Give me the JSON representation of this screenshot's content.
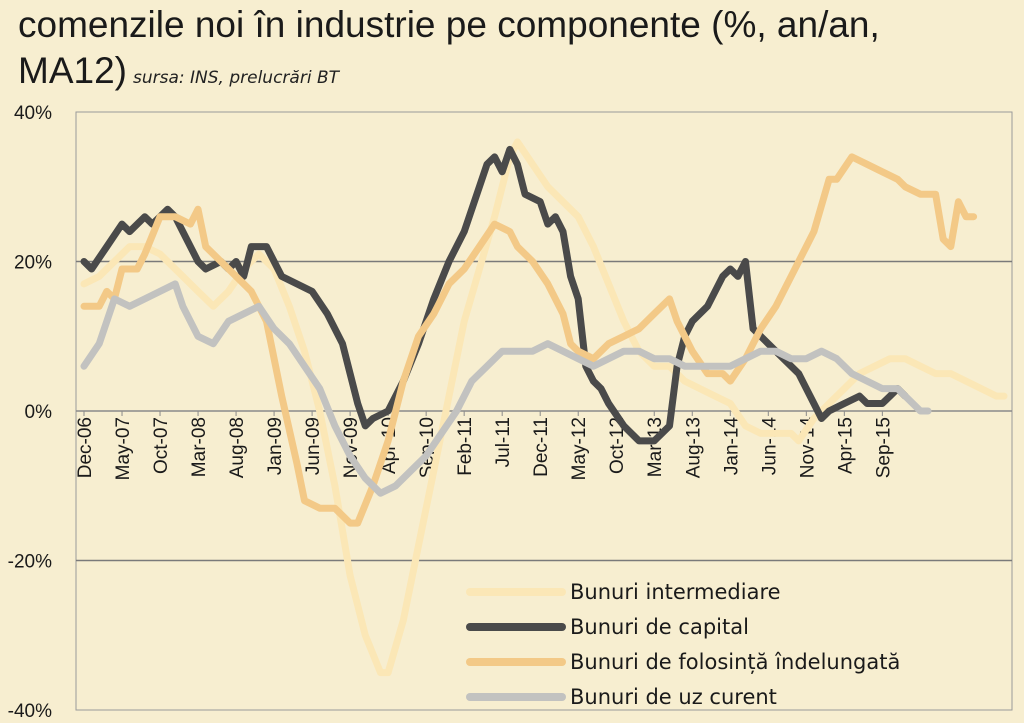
{
  "chart_data": {
    "type": "line",
    "title_main": "comenzile noi în industrie pe componente (%, an/an, MA12)",
    "title_source": "sursa: INS, prelucrări BT",
    "ylim": [
      -40,
      40
    ],
    "y_ticks": [
      "40%",
      "20%",
      "0%",
      "-20%",
      "-40%"
    ],
    "y_tick_values": [
      40,
      20,
      0,
      -20,
      -40
    ],
    "x_tick_labels": [
      "Dec-06",
      "May-07",
      "Oct-07",
      "Mar-08",
      "Aug-08",
      "Jan-09",
      "Jun-09",
      "Nov-09",
      "Apr-10",
      "Sep-10",
      "Feb-11",
      "Jul-11",
      "Dec-11",
      "May-12",
      "Oct-12",
      "Mar-13",
      "Aug-13",
      "Jan-14",
      "Jun-14",
      "Nov-14",
      "Apr-15",
      "Sep-15"
    ],
    "grid": true,
    "legend_position": "bottom-right",
    "colors": {
      "intermediare": "#fbe7b6",
      "capital": "#4a4a4a",
      "folosinta": "#f3c987",
      "uz_curent": "#c2c2c0",
      "background": "#f7eed0",
      "gridline": "#7a7a7a"
    },
    "series": [
      {
        "name": "Bunuri intermediare",
        "key": "intermediare",
        "points": [
          [
            0,
            17
          ],
          [
            2,
            18
          ],
          [
            4,
            20
          ],
          [
            6,
            22
          ],
          [
            8,
            22
          ],
          [
            10,
            21
          ],
          [
            13,
            18
          ],
          [
            15,
            16
          ],
          [
            17,
            14
          ],
          [
            19,
            16
          ],
          [
            21,
            19
          ],
          [
            23,
            21
          ],
          [
            25,
            19
          ],
          [
            27,
            14
          ],
          [
            29,
            8
          ],
          [
            31,
            0
          ],
          [
            33,
            -10
          ],
          [
            35,
            -22
          ],
          [
            37,
            -30
          ],
          [
            39,
            -35
          ],
          [
            40,
            -35
          ],
          [
            42,
            -28
          ],
          [
            44,
            -18
          ],
          [
            46,
            -8
          ],
          [
            48,
            2
          ],
          [
            50,
            12
          ],
          [
            52,
            19
          ],
          [
            54,
            26
          ],
          [
            56,
            34
          ],
          [
            57,
            36
          ],
          [
            59,
            33
          ],
          [
            61,
            30
          ],
          [
            63,
            28
          ],
          [
            65,
            26
          ],
          [
            67,
            22
          ],
          [
            69,
            17
          ],
          [
            71,
            12
          ],
          [
            73,
            8
          ],
          [
            75,
            6
          ],
          [
            77,
            6
          ],
          [
            79,
            4
          ],
          [
            81,
            3
          ],
          [
            83,
            2
          ],
          [
            85,
            1
          ],
          [
            87,
            -2
          ],
          [
            89,
            -3
          ],
          [
            91,
            -3
          ],
          [
            93,
            -3
          ],
          [
            94,
            -4
          ],
          [
            96,
            -1
          ],
          [
            98,
            1
          ],
          [
            100,
            3
          ],
          [
            102,
            5
          ],
          [
            104,
            6
          ],
          [
            106,
            7
          ],
          [
            108,
            7
          ],
          [
            110,
            6
          ],
          [
            112,
            5
          ],
          [
            114,
            5
          ],
          [
            116,
            4
          ],
          [
            118,
            3
          ],
          [
            120,
            2
          ],
          [
            121,
            2
          ]
        ]
      },
      {
        "name": "Bunuri de capital",
        "key": "capital",
        "points": [
          [
            0,
            20
          ],
          [
            1,
            19
          ],
          [
            3,
            22
          ],
          [
            5,
            25
          ],
          [
            6,
            24
          ],
          [
            8,
            26
          ],
          [
            9,
            25
          ],
          [
            11,
            27
          ],
          [
            12,
            26
          ],
          [
            13,
            24
          ],
          [
            15,
            20
          ],
          [
            16,
            19
          ],
          [
            18,
            20
          ],
          [
            19,
            19
          ],
          [
            20,
            20
          ],
          [
            21,
            18
          ],
          [
            22,
            22
          ],
          [
            24,
            22
          ],
          [
            26,
            18
          ],
          [
            28,
            17
          ],
          [
            30,
            16
          ],
          [
            32,
            13
          ],
          [
            34,
            9
          ],
          [
            35,
            5
          ],
          [
            36,
            1
          ],
          [
            37,
            -2
          ],
          [
            38,
            -1
          ],
          [
            40,
            0
          ],
          [
            42,
            4
          ],
          [
            44,
            9
          ],
          [
            46,
            15
          ],
          [
            48,
            20
          ],
          [
            50,
            24
          ],
          [
            52,
            30
          ],
          [
            53,
            33
          ],
          [
            54,
            34
          ],
          [
            55,
            32
          ],
          [
            56,
            35
          ],
          [
            57,
            33
          ],
          [
            58,
            29
          ],
          [
            60,
            28
          ],
          [
            61,
            25
          ],
          [
            62,
            26
          ],
          [
            63,
            24
          ],
          [
            64,
            18
          ],
          [
            65,
            15
          ],
          [
            66,
            6
          ],
          [
            67,
            4
          ],
          [
            68,
            3
          ],
          [
            69,
            1
          ],
          [
            71,
            -2
          ],
          [
            73,
            -4
          ],
          [
            75,
            -4
          ],
          [
            76,
            -3
          ],
          [
            77,
            -2
          ],
          [
            78,
            6
          ],
          [
            79,
            10
          ],
          [
            80,
            12
          ],
          [
            82,
            14
          ],
          [
            84,
            18
          ],
          [
            85,
            19
          ],
          [
            86,
            18
          ],
          [
            87,
            20
          ],
          [
            88,
            11
          ],
          [
            90,
            9
          ],
          [
            92,
            7
          ],
          [
            94,
            5
          ],
          [
            95,
            3
          ],
          [
            96,
            1
          ],
          [
            97,
            -1
          ],
          [
            98,
            0
          ],
          [
            100,
            1
          ],
          [
            102,
            2
          ],
          [
            103,
            1
          ],
          [
            105,
            1
          ],
          [
            106,
            2
          ],
          [
            107,
            3
          ],
          [
            108,
            2
          ]
        ]
      },
      {
        "name": "Bunuri de folosință îndelungată",
        "key": "folosinta",
        "points": [
          [
            0,
            14
          ],
          [
            2,
            14
          ],
          [
            3,
            16
          ],
          [
            4,
            15
          ],
          [
            5,
            19
          ],
          [
            7,
            19
          ],
          [
            8,
            21
          ],
          [
            10,
            26
          ],
          [
            12,
            26
          ],
          [
            14,
            25
          ],
          [
            15,
            27
          ],
          [
            16,
            22
          ],
          [
            18,
            20
          ],
          [
            20,
            18
          ],
          [
            22,
            16
          ],
          [
            24,
            12
          ],
          [
            26,
            2
          ],
          [
            28,
            -7
          ],
          [
            29,
            -12
          ],
          [
            31,
            -13
          ],
          [
            33,
            -13
          ],
          [
            35,
            -15
          ],
          [
            36,
            -15
          ],
          [
            38,
            -10
          ],
          [
            40,
            -4
          ],
          [
            42,
            4
          ],
          [
            44,
            10
          ],
          [
            46,
            13
          ],
          [
            48,
            17
          ],
          [
            50,
            19
          ],
          [
            52,
            22
          ],
          [
            54,
            25
          ],
          [
            56,
            24
          ],
          [
            57,
            22
          ],
          [
            59,
            20
          ],
          [
            61,
            17
          ],
          [
            63,
            13
          ],
          [
            64,
            9
          ],
          [
            65,
            8
          ],
          [
            67,
            7
          ],
          [
            69,
            9
          ],
          [
            71,
            10
          ],
          [
            73,
            11
          ],
          [
            75,
            13
          ],
          [
            77,
            15
          ],
          [
            78,
            12
          ],
          [
            80,
            8
          ],
          [
            82,
            5
          ],
          [
            84,
            5
          ],
          [
            85,
            4
          ],
          [
            87,
            7
          ],
          [
            89,
            11
          ],
          [
            91,
            14
          ],
          [
            93,
            18
          ],
          [
            95,
            22
          ],
          [
            96,
            24
          ],
          [
            98,
            31
          ],
          [
            99,
            31
          ],
          [
            101,
            34
          ],
          [
            103,
            33
          ],
          [
            105,
            32
          ],
          [
            107,
            31
          ],
          [
            108,
            30
          ],
          [
            110,
            29
          ],
          [
            112,
            29
          ],
          [
            113,
            23
          ],
          [
            114,
            22
          ],
          [
            115,
            28
          ],
          [
            116,
            26
          ],
          [
            117,
            26
          ]
        ]
      },
      {
        "name": "Bunuri de uz curent",
        "key": "uz_curent",
        "points": [
          [
            0,
            6
          ],
          [
            2,
            9
          ],
          [
            4,
            15
          ],
          [
            6,
            14
          ],
          [
            8,
            15
          ],
          [
            10,
            16
          ],
          [
            12,
            17
          ],
          [
            13,
            14
          ],
          [
            15,
            10
          ],
          [
            17,
            9
          ],
          [
            19,
            12
          ],
          [
            21,
            13
          ],
          [
            23,
            14
          ],
          [
            25,
            11
          ],
          [
            27,
            9
          ],
          [
            29,
            6
          ],
          [
            31,
            3
          ],
          [
            33,
            -2
          ],
          [
            35,
            -6
          ],
          [
            37,
            -9
          ],
          [
            39,
            -11
          ],
          [
            41,
            -10
          ],
          [
            43,
            -8
          ],
          [
            45,
            -6
          ],
          [
            47,
            -3
          ],
          [
            49,
            0
          ],
          [
            51,
            4
          ],
          [
            53,
            6
          ],
          [
            55,
            8
          ],
          [
            57,
            8
          ],
          [
            59,
            8
          ],
          [
            61,
            9
          ],
          [
            63,
            8
          ],
          [
            65,
            7
          ],
          [
            67,
            6
          ],
          [
            69,
            7
          ],
          [
            71,
            8
          ],
          [
            73,
            8
          ],
          [
            75,
            7
          ],
          [
            77,
            7
          ],
          [
            79,
            6
          ],
          [
            81,
            6
          ],
          [
            83,
            6
          ],
          [
            85,
            6
          ],
          [
            87,
            7
          ],
          [
            89,
            8
          ],
          [
            91,
            8
          ],
          [
            93,
            7
          ],
          [
            95,
            7
          ],
          [
            97,
            8
          ],
          [
            99,
            7
          ],
          [
            101,
            5
          ],
          [
            103,
            4
          ],
          [
            105,
            3
          ],
          [
            107,
            3
          ],
          [
            109,
            1
          ],
          [
            110,
            0
          ],
          [
            111,
            0
          ]
        ]
      }
    ]
  }
}
